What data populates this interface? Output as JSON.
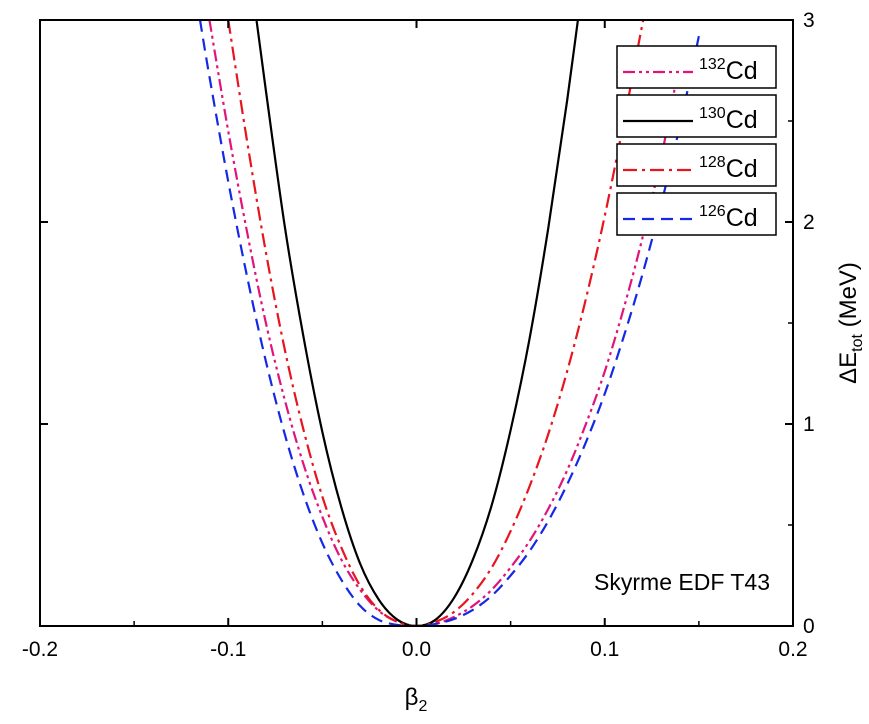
{
  "chart_data": {
    "type": "line",
    "title": "",
    "xlabel": "β",
    "xlabel_sub": "2",
    "ylabel_prefix": "ΔE",
    "ylabel_sub": "tot",
    "ylabel_unit": " (MeV)",
    "xlim": [
      -0.2,
      0.2
    ],
    "ylim": [
      0,
      3
    ],
    "x_ticks": [
      -0.2,
      -0.1,
      0.0,
      0.1,
      0.2
    ],
    "x_tick_labels": [
      "-0.2",
      "-0.1",
      "0.0",
      "0.1",
      "0.2"
    ],
    "y_ticks": [
      0,
      1,
      2,
      3
    ],
    "y_tick_labels": [
      "0",
      "1",
      "2",
      "3"
    ],
    "y_axis_side": "right",
    "grid": false,
    "legend_position": "top-right",
    "annotation": "Skyrme EDF T43",
    "series": [
      {
        "name": "132Cd",
        "label_sup": "132",
        "label_main": "Cd",
        "color": "#e0147a",
        "style": "dash-dot-dot",
        "x": [
          -0.11,
          -0.1,
          -0.09,
          -0.08,
          -0.07,
          -0.06,
          -0.05,
          -0.04,
          -0.03,
          -0.02,
          -0.01,
          0.0,
          0.01,
          0.02,
          0.03,
          0.04,
          0.05,
          0.06,
          0.07,
          0.08,
          0.09,
          0.1,
          0.11,
          0.12,
          0.13,
          0.14
        ],
        "y": [
          3.0,
          2.45,
          1.95,
          1.5,
          1.12,
          0.8,
          0.54,
          0.33,
          0.18,
          0.075,
          0.02,
          0.0,
          0.01,
          0.045,
          0.1,
          0.18,
          0.29,
          0.42,
          0.58,
          0.77,
          1.0,
          1.26,
          1.57,
          1.92,
          2.32,
          2.8
        ]
      },
      {
        "name": "130Cd",
        "label_sup": "130",
        "label_main": "Cd",
        "color": "#000000",
        "style": "solid",
        "x": [
          -0.085,
          -0.08,
          -0.07,
          -0.06,
          -0.05,
          -0.04,
          -0.03,
          -0.02,
          -0.01,
          0.0,
          0.01,
          0.02,
          0.03,
          0.04,
          0.05,
          0.06,
          0.07,
          0.08,
          0.09,
          0.095
        ],
        "y": [
          3.0,
          2.65,
          1.98,
          1.43,
          0.96,
          0.59,
          0.31,
          0.13,
          0.03,
          0.0,
          0.03,
          0.14,
          0.33,
          0.6,
          0.97,
          1.42,
          1.97,
          2.6,
          3.3,
          3.6
        ]
      },
      {
        "name": "128Cd",
        "label_sup": "128",
        "label_main": "Cd",
        "color": "#e8141e",
        "style": "dash-dot",
        "x": [
          -0.1,
          -0.09,
          -0.08,
          -0.07,
          -0.06,
          -0.05,
          -0.04,
          -0.03,
          -0.02,
          -0.01,
          0.0,
          0.01,
          0.02,
          0.03,
          0.04,
          0.05,
          0.06,
          0.07,
          0.08,
          0.09,
          0.1,
          0.11,
          0.12,
          0.125
        ],
        "y": [
          3.0,
          2.4,
          1.85,
          1.37,
          0.97,
          0.64,
          0.39,
          0.2,
          0.08,
          0.02,
          0.0,
          0.02,
          0.07,
          0.16,
          0.29,
          0.47,
          0.69,
          0.95,
          1.26,
          1.62,
          2.03,
          2.49,
          2.98,
          3.2
        ]
      },
      {
        "name": "126Cd",
        "label_sup": "126",
        "label_main": "Cd",
        "color": "#1428e6",
        "style": "dashed",
        "x": [
          -0.115,
          -0.11,
          -0.1,
          -0.09,
          -0.08,
          -0.07,
          -0.06,
          -0.05,
          -0.04,
          -0.03,
          -0.02,
          -0.01,
          0.0,
          0.01,
          0.02,
          0.03,
          0.04,
          0.05,
          0.06,
          0.07,
          0.08,
          0.09,
          0.1,
          0.11,
          0.12,
          0.13,
          0.14,
          0.15
        ],
        "y": [
          3.0,
          2.72,
          2.2,
          1.73,
          1.31,
          0.95,
          0.65,
          0.41,
          0.23,
          0.1,
          0.03,
          0.005,
          0.0,
          0.01,
          0.035,
          0.08,
          0.15,
          0.25,
          0.37,
          0.52,
          0.7,
          0.91,
          1.15,
          1.43,
          1.74,
          2.09,
          2.48,
          2.92
        ]
      }
    ]
  }
}
